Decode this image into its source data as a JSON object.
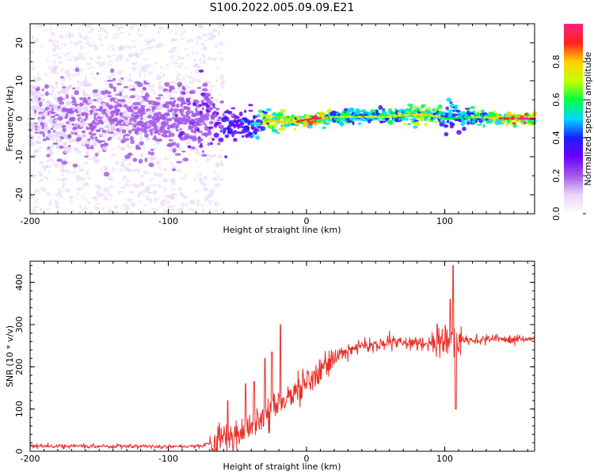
{
  "chart_data": [
    {
      "type": "heatmap",
      "title": "S100.2022.005.09.09.E21",
      "xlabel": "Height of straight line (km)",
      "ylabel": "Frequency (Hz)",
      "xlim": [
        -200,
        165
      ],
      "ylim": [
        -25,
        25
      ],
      "x_ticks": [
        -200,
        -100,
        0,
        100
      ],
      "y_ticks": [
        -20,
        -10,
        0,
        10,
        20
      ],
      "colorbar": {
        "label": "Normalized spectral amplitude",
        "range": [
          0,
          1
        ],
        "ticks": [
          "0.0",
          "0.2",
          "0.4",
          "0.6",
          "0.8"
        ],
        "colormap": [
          "#ffffff",
          "#e8d6f6",
          "#a45ae6",
          "#6a00ff",
          "#1a20ff",
          "#00d8ff",
          "#00ff40",
          "#c8ff00",
          "#ffd000",
          "#ff2020",
          "#ff2080"
        ]
      },
      "ridge": {
        "description_points": [
          {
            "x": -200,
            "freq": 0,
            "amp": 0.15,
            "spread": 8
          },
          {
            "x": -70,
            "freq": 0,
            "amp": 0.25,
            "spread": 7
          },
          {
            "x": -60,
            "freq": -2,
            "amp": 0.35,
            "spread": 4
          },
          {
            "x": -40,
            "freq": -1.5,
            "amp": 0.45,
            "spread": 3
          },
          {
            "x": -25,
            "freq": -0.5,
            "amp": 0.75,
            "spread": 2
          },
          {
            "x": -10,
            "freq": -1,
            "amp": 0.7,
            "spread": 1.5
          },
          {
            "x": 5,
            "freq": 0,
            "amp": 0.9,
            "spread": 1.2
          },
          {
            "x": 20,
            "freq": 0.5,
            "amp": 0.55,
            "spread": 1.5
          },
          {
            "x": 60,
            "freq": 0.5,
            "amp": 0.6,
            "spread": 1.5
          },
          {
            "x": 75,
            "freq": 1,
            "amp": 0.65,
            "spread": 2
          },
          {
            "x": 90,
            "freq": 1,
            "amp": 0.7,
            "spread": 2
          },
          {
            "x": 100,
            "freq": 0,
            "amp": 0.5,
            "spread": 3
          },
          {
            "x": 120,
            "freq": 0.5,
            "amp": 0.55,
            "spread": 1.5
          },
          {
            "x": 150,
            "freq": 0,
            "amp": 0.85,
            "spread": 1.2
          },
          {
            "x": 165,
            "freq": 0,
            "amp": 0.85,
            "spread": 1.2
          }
        ]
      }
    },
    {
      "type": "line",
      "title": "",
      "xlabel": "Height of straight line (km)",
      "ylabel": "SNR (10 * v/v)",
      "xlim": [
        -200,
        165
      ],
      "ylim": [
        0,
        450
      ],
      "x_ticks": [
        -200,
        -100,
        0,
        100
      ],
      "y_ticks": [
        0,
        100,
        200,
        300,
        400
      ],
      "series": [
        {
          "color": "#e8302a",
          "trend_points": [
            {
              "x": -200,
              "y": 12
            },
            {
              "x": -80,
              "y": 12
            },
            {
              "x": -65,
              "y": 20
            },
            {
              "x": -50,
              "y": 40
            },
            {
              "x": -35,
              "y": 70
            },
            {
              "x": -20,
              "y": 110
            },
            {
              "x": -5,
              "y": 150
            },
            {
              "x": 10,
              "y": 190
            },
            {
              "x": 25,
              "y": 230
            },
            {
              "x": 40,
              "y": 250
            },
            {
              "x": 60,
              "y": 255
            },
            {
              "x": 80,
              "y": 258
            },
            {
              "x": 95,
              "y": 260
            },
            {
              "x": 110,
              "y": 263
            },
            {
              "x": 140,
              "y": 265
            },
            {
              "x": 165,
              "y": 265
            }
          ],
          "spikes": [
            {
              "x": -57,
              "y": 120
            },
            {
              "x": -44,
              "y": 160
            },
            {
              "x": -38,
              "y": 165
            },
            {
              "x": -30,
              "y": 220
            },
            {
              "x": -25,
              "y": 235
            },
            {
              "x": -19,
              "y": 300
            },
            {
              "x": 106,
              "y": 440
            },
            {
              "x": 108,
              "y": 100
            },
            {
              "x": 104,
              "y": 360
            }
          ]
        }
      ]
    }
  ]
}
